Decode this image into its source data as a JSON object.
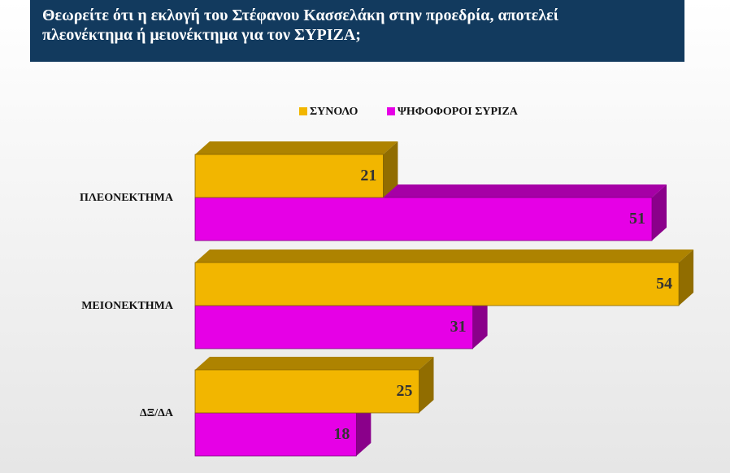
{
  "chart_data": {
    "type": "bar3d-horizontal",
    "title": "Θεωρείτε ότι η εκλογή του Στέφανου Κασσελάκη στην προεδρία, αποτελεί πλεονέκτημα ή μειονέκτημα για τον ΣΥΡΙΖΑ;",
    "categories": [
      "ΠΛΕΟΝΕΚΤΗΜΑ",
      "ΜΕΙΟΝΕΚΤΗΜΑ",
      "ΔΞ/ΔΑ"
    ],
    "series": [
      {
        "name": "ΣΥΝΟΛΟ",
        "color": "#f2b600",
        "values": [
          21,
          54,
          25
        ]
      },
      {
        "name": "ΨΗΦΟΦΟΡΟΙ ΣΥΡΙΖΑ",
        "color": "#e600e6",
        "values": [
          51,
          31,
          18
        ]
      }
    ],
    "legend": "top"
  }
}
